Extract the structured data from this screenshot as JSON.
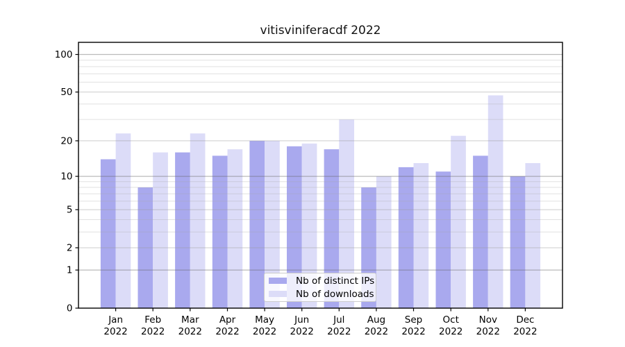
{
  "title": "vitisviniferacdf 2022",
  "legend": {
    "items": [
      {
        "label": "Nb of distinct IPs",
        "color": "#a9a9ee"
      },
      {
        "label": "Nb of downloads",
        "color": "#dcdcf8"
      }
    ]
  },
  "colors": {
    "ips_bar": "#a9a9ee",
    "downloads_bar": "#dcdcf8",
    "spine": "#000000",
    "grid_power10": "#666666",
    "grid_major": "#999999",
    "grid_minor": "#aaaaaa",
    "tick_text": "#000000"
  },
  "chart_data": {
    "type": "bar",
    "title": "vitisviniferacdf 2022",
    "categories": [
      "Jan 2022",
      "Feb 2022",
      "Mar 2022",
      "Apr 2022",
      "May 2022",
      "Jun 2022",
      "Jul 2022",
      "Aug 2022",
      "Sep 2022",
      "Oct 2022",
      "Nov 2022",
      "Dec 2022"
    ],
    "months": [
      "Jan",
      "Feb",
      "Mar",
      "Apr",
      "May",
      "Jun",
      "Jul",
      "Aug",
      "Sep",
      "Oct",
      "Nov",
      "Dec"
    ],
    "year": "2022",
    "series": [
      {
        "name": "Nb of distinct IPs",
        "color": "#a9a9ee",
        "values": [
          14,
          8,
          16,
          15,
          20,
          18,
          17,
          8,
          12,
          11,
          15,
          10
        ]
      },
      {
        "name": "Nb of downloads",
        "color": "#dcdcf8",
        "values": [
          23,
          16,
          23,
          17,
          20,
          19,
          30,
          10,
          13,
          22,
          47,
          13
        ]
      }
    ],
    "xlabel": "",
    "ylabel": "",
    "yscale": "log1p",
    "ylim": [
      0,
      125
    ],
    "yticks": [
      0,
      1,
      2,
      5,
      10,
      20,
      50,
      100
    ],
    "minor_yticks": [
      3,
      4,
      6,
      7,
      8,
      9,
      30,
      40,
      60,
      70,
      80,
      90
    ],
    "grid": true,
    "legend_position": "lower center"
  }
}
